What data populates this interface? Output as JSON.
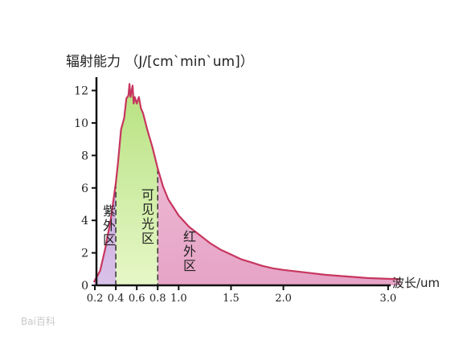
{
  "chart_data": {
    "type": "area",
    "title": "辐射能力 （J/[cm`min`um]）",
    "xlabel": "波长/um",
    "ylabel": "",
    "xlim": [
      0,
      3.1
    ],
    "ylim": [
      0,
      12.5
    ],
    "yticks": [
      0,
      2,
      4,
      6,
      8,
      10,
      12
    ],
    "ytick_labels": [
      "0",
      "2",
      "4",
      "6",
      "8",
      "10",
      "12"
    ],
    "xticks": [
      0.2,
      0.4,
      0.6,
      0.8,
      1.0,
      1.5,
      2.0,
      3.0
    ],
    "xtick_labels": [
      "0.2",
      "0.4",
      "0.6",
      "0.8",
      "1.0",
      "1.5",
      "2.0",
      "3.0"
    ],
    "series": [
      {
        "x": [
          0.19,
          0.25,
          0.3,
          0.35,
          0.4,
          0.42,
          0.45,
          0.48,
          0.5,
          0.52,
          0.53,
          0.54,
          0.56,
          0.57,
          0.58,
          0.6,
          0.62,
          0.64,
          0.66,
          0.7,
          0.75,
          0.8,
          0.85,
          0.9,
          0.95,
          1.0,
          1.1,
          1.2,
          1.3,
          1.4,
          1.5,
          1.6,
          1.7,
          1.8,
          1.9,
          2.0,
          2.2,
          2.4,
          2.6,
          2.8,
          3.0,
          3.12
        ],
        "values": [
          0.2,
          0.9,
          2.3,
          4.0,
          6.3,
          7.5,
          9.6,
          10.3,
          11.5,
          11.7,
          12.4,
          11.6,
          12.3,
          11.2,
          11.6,
          11.2,
          11.6,
          10.9,
          10.6,
          9.6,
          8.5,
          7.2,
          6.1,
          5.3,
          4.8,
          4.3,
          3.6,
          3.1,
          2.6,
          2.2,
          1.9,
          1.6,
          1.4,
          1.2,
          1.05,
          0.95,
          0.8,
          0.65,
          0.55,
          0.45,
          0.4,
          0.38
        ]
      }
    ],
    "regions": [
      {
        "label": "紫外区",
        "from": 0.19,
        "to": 0.4,
        "color": "#c8a6d8"
      },
      {
        "label": "可见光区",
        "from": 0.4,
        "to": 0.8,
        "color": "#c9ec9c"
      },
      {
        "label": "红外区",
        "from": 0.8,
        "to": 3.12,
        "color": "#f4bedb"
      }
    ],
    "colors": {
      "curve": "#c7365f",
      "axis": "#111111",
      "divider": "#333333"
    },
    "grid": false
  },
  "watermark": {
    "text": "Bai百科"
  }
}
